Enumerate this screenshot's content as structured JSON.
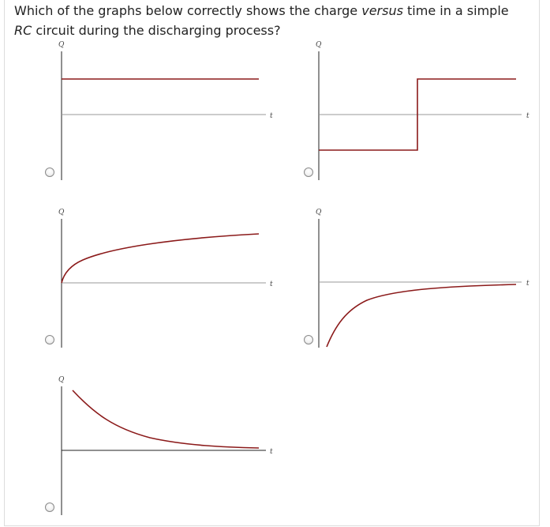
{
  "question": {
    "text_1": "Which of the graphs below correctly shows the charge ",
    "emphasis": "versus",
    "text_2": " time in a simple",
    "line2_italic": "RC",
    "line2_rest": " circuit during the discharging process?"
  },
  "options": [
    {
      "y_axis_label": "Q",
      "x_axis_label": "t",
      "curve": "constant-positive"
    },
    {
      "y_axis_label": "Q",
      "x_axis_label": "t",
      "curve": "step-negative-to-positive"
    },
    {
      "y_axis_label": "Q",
      "x_axis_label": "t",
      "curve": "rising-log"
    },
    {
      "y_axis_label": "Q",
      "x_axis_label": "t",
      "curve": "negative-approaching-zero"
    },
    {
      "y_axis_label": "Q",
      "x_axis_label": "t",
      "curve": "exponential-decay"
    }
  ],
  "colors": {
    "curve": "#8b1a1a",
    "axis": "#222222",
    "baseline": "#9a9a9a"
  },
  "icons": {
    "choice_control": "radio-button-icon"
  }
}
